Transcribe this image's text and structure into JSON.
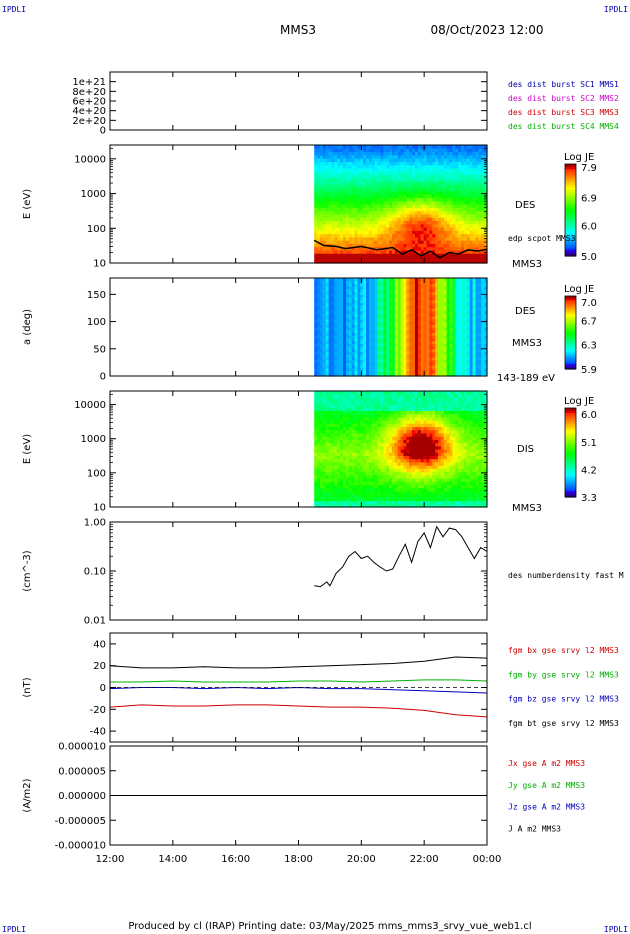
{
  "header": {
    "corner_left_top": "IPDLI",
    "corner_right_top": "IPDLI",
    "corner_left_bottom": "IPDLI",
    "corner_right_bottom": "IPDLI",
    "spacecraft": "MMS3",
    "datetime": "08/Oct/2023 12:00"
  },
  "footer": {
    "text": "Produced by cl (IRAP)   Printing date: 03/May/2025   mms_mms3_srvy_vue_web1.cl"
  },
  "colors": {
    "black": "#000000",
    "red": "#d00000",
    "green": "#00b000",
    "blue": "#0000c0",
    "magenta": "#d000d0",
    "navy": "#0000aa"
  },
  "chart_data": [
    {
      "id": "panel1",
      "type": "line",
      "ylim": [
        0,
        1.2e+21
      ],
      "yticks": [
        0,
        2e+20,
        4e+20,
        6e+20,
        8e+20,
        1e+21
      ],
      "ytick_labels": [
        "0",
        "2e+20",
        "4e+20",
        "6e+20",
        "8e+20",
        "1e+21"
      ],
      "legend_position": "right",
      "legend": [
        {
          "label": "des dist burst SC1 MMS1",
          "color": "#0000aa"
        },
        {
          "label": "des dist burst SC2 MMS2",
          "color": "#d000d0"
        },
        {
          "label": "des dist burst SC3 MMS3",
          "color": "#d00000"
        },
        {
          "label": "des dist burst SC4 MMS4",
          "color": "#00b000"
        }
      ],
      "series": [
        {
          "x": [
            12,
            24
          ],
          "y": [
            0,
            0
          ],
          "color": "#000000",
          "dashed": true
        }
      ]
    },
    {
      "id": "panel2",
      "type": "heatmap",
      "ylabel": "E (eV)",
      "yscale": "log",
      "ylim": [
        10,
        25000
      ],
      "yticks": [
        10,
        100,
        1000,
        10000
      ],
      "ytick_labels": [
        "10",
        "100",
        "1000",
        "10000"
      ],
      "data_start_hour": 18.5,
      "side_label_1": "DES",
      "side_label_2": "MMS3",
      "overlay_label": "edp scpot MMS3",
      "colorbar": {
        "title": "Log JE",
        "ticks": [
          5.0,
          6.0,
          6.9,
          7.9
        ],
        "tick_labels": [
          "5.0",
          "6.0",
          "6.9",
          "7.9"
        ],
        "range": [
          5.0,
          8.0
        ]
      },
      "overlay": {
        "x": [
          18.5,
          18.8,
          19.2,
          19.5,
          20.0,
          20.5,
          21.0,
          21.3,
          21.6,
          21.9,
          22.2,
          22.5,
          22.8,
          23.1,
          23.4,
          23.7,
          24.0
        ],
        "y": [
          45,
          32,
          30,
          26,
          30,
          24,
          28,
          18,
          24,
          16,
          22,
          14,
          20,
          18,
          24,
          22,
          25
        ]
      }
    },
    {
      "id": "panel3",
      "type": "heatmap",
      "ylabel": "a (deg)",
      "ylim": [
        0,
        180
      ],
      "yticks": [
        0,
        50,
        100,
        150
      ],
      "ytick_labels": [
        "0",
        "50",
        "100",
        "150"
      ],
      "data_start_hour": 18.5,
      "side_label_1": "DES",
      "side_label_2": "MMS3",
      "energy_range": "143-189 eV",
      "colorbar": {
        "title": "Log JE",
        "ticks": [
          5.9,
          6.3,
          6.7,
          7.0
        ],
        "tick_labels": [
          "5.9",
          "6.3",
          "6.7",
          "7.0"
        ],
        "range": [
          5.9,
          7.1
        ]
      }
    },
    {
      "id": "panel4",
      "type": "heatmap",
      "ylabel": "E (eV)",
      "yscale": "log",
      "ylim": [
        10,
        25000
      ],
      "yticks": [
        10,
        100,
        1000,
        10000
      ],
      "ytick_labels": [
        "10",
        "100",
        "1000",
        "10000"
      ],
      "data_start_hour": 18.5,
      "side_label_1": "DIS",
      "side_label_2": "MMS3",
      "colorbar": {
        "title": "Log JE",
        "ticks": [
          3.3,
          4.2,
          5.1,
          6.0
        ],
        "tick_labels": [
          "3.3",
          "4.2",
          "5.1",
          "6.0"
        ],
        "range": [
          3.3,
          6.2
        ]
      }
    },
    {
      "id": "panel5",
      "type": "line",
      "ylabel": "(cm^-3)",
      "yscale": "log",
      "ylim": [
        0.01,
        1.0
      ],
      "yticks": [
        0.01,
        0.1,
        1.0
      ],
      "ytick_labels": [
        "0.01",
        "0.10",
        "1.00"
      ],
      "legend": [
        {
          "label": "des numberdensity fast M",
          "color": "#000000"
        }
      ],
      "series": [
        {
          "name": "des numberdensity fast M",
          "color": "#000000",
          "x": [
            18.5,
            18.7,
            18.9,
            19.0,
            19.2,
            19.4,
            19.6,
            19.8,
            20.0,
            20.2,
            20.4,
            20.6,
            20.8,
            21.0,
            21.2,
            21.4,
            21.6,
            21.8,
            22.0,
            22.2,
            22.4,
            22.6,
            22.8,
            23.0,
            23.2,
            23.4,
            23.6,
            23.8,
            24.0
          ],
          "y": [
            0.05,
            0.048,
            0.06,
            0.05,
            0.09,
            0.12,
            0.2,
            0.25,
            0.18,
            0.2,
            0.15,
            0.12,
            0.1,
            0.11,
            0.2,
            0.35,
            0.15,
            0.4,
            0.6,
            0.3,
            0.8,
            0.5,
            0.75,
            0.7,
            0.5,
            0.3,
            0.18,
            0.3,
            0.25
          ]
        }
      ]
    },
    {
      "id": "panel6",
      "type": "line",
      "ylabel": "(nT)",
      "ylim": [
        -50,
        50
      ],
      "yticks": [
        -40,
        -20,
        0,
        20,
        40
      ],
      "ytick_labels": [
        "-40",
        "-20",
        "0",
        "20",
        "40"
      ],
      "legend_position": "right",
      "legend": [
        {
          "label": "fgm bx gse srvy l2 MMS3",
          "color": "#d00000"
        },
        {
          "label": "fgm by gse srvy l2 MMS3",
          "color": "#00b000"
        },
        {
          "label": "fgm bz gse srvy l2 MMS3",
          "color": "#0000c0"
        },
        {
          "label": "fgm bt gse srvy l2 MMS3",
          "color": "#000000"
        }
      ],
      "series": [
        {
          "name": "fgm bt gse srvy l2 MMS3",
          "color": "#000000",
          "x": [
            12,
            13,
            14,
            15,
            16,
            17,
            18,
            19,
            20,
            21,
            22,
            23,
            24
          ],
          "y": [
            20,
            18,
            18,
            19,
            18,
            18,
            19,
            20,
            21,
            22,
            24,
            28,
            27
          ]
        },
        {
          "name": "fgm by gse srvy l2 MMS3",
          "color": "#00b000",
          "x": [
            12,
            13,
            14,
            15,
            16,
            17,
            18,
            19,
            20,
            21,
            22,
            23,
            24
          ],
          "y": [
            5,
            5,
            6,
            5,
            5,
            5,
            6,
            6,
            5,
            6,
            7,
            7,
            6
          ]
        },
        {
          "name": "fgm bz gse srvy l2 MMS3",
          "color": "#0000c0",
          "x": [
            12,
            13,
            14,
            15,
            16,
            17,
            18,
            19,
            20,
            21,
            22,
            23,
            24
          ],
          "y": [
            -1,
            0,
            0,
            -1,
            0,
            -1,
            0,
            -1,
            -1,
            -2,
            -3,
            -4,
            -5
          ]
        },
        {
          "name": "fgm bx gse srvy l2 MMS3",
          "color": "#d00000",
          "x": [
            12,
            13,
            14,
            15,
            16,
            17,
            18,
            19,
            20,
            21,
            22,
            23,
            24
          ],
          "y": [
            -18,
            -16,
            -17,
            -17,
            -16,
            -16,
            -17,
            -18,
            -18,
            -19,
            -21,
            -25,
            -27
          ]
        }
      ]
    },
    {
      "id": "panel7",
      "type": "line",
      "ylabel": "(A/m2)",
      "ylim": [
        -1e-05,
        1e-05
      ],
      "yticks": [
        -1e-05,
        -5e-06,
        0,
        5e-06,
        1e-05
      ],
      "ytick_labels": [
        "-0.000010",
        "-0.000005",
        "0.000000",
        "0.000005",
        "0.000010"
      ],
      "legend_position": "right",
      "legend": [
        {
          "label": "Jx gse A m2 MMS3",
          "color": "#d00000"
        },
        {
          "label": "Jy gse A m2 MMS3",
          "color": "#00b000"
        },
        {
          "label": "Jz gse A m2 MMS3",
          "color": "#0000c0"
        },
        {
          "label": "J A m2 MMS3",
          "color": "#000000"
        }
      ],
      "series": [
        {
          "name": "J A m2 MMS3",
          "color": "#000000",
          "x": [
            12,
            24
          ],
          "y": [
            0,
            0
          ]
        }
      ]
    }
  ],
  "time_axis": {
    "range_hours": [
      12,
      24
    ],
    "ticks": [
      12,
      14,
      16,
      18,
      20,
      22,
      24
    ],
    "tick_labels": [
      "12:00",
      "14:00",
      "16:00",
      "18:00",
      "20:00",
      "22:00",
      "00:00"
    ]
  }
}
